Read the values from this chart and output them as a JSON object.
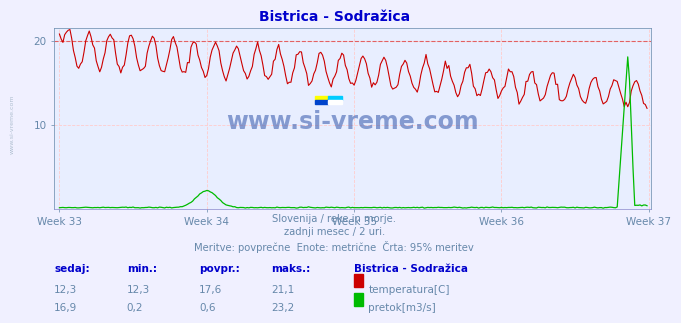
{
  "title": "Bistrica - Sodražica",
  "title_color": "#0000cc",
  "bg_color": "#f0f0ff",
  "plot_bg_color": "#e8eeff",
  "grid_color": "#ffcccc",
  "xlabel_weeks": [
    "Week 33",
    "Week 34",
    "Week 35",
    "Week 36",
    "Week 37"
  ],
  "week_x_positions": [
    0,
    84,
    168,
    252,
    336
  ],
  "ylim_temp": [
    0,
    21.5
  ],
  "yticks_temp": [
    10,
    20
  ],
  "watermark_text": "www.si-vreme.com",
  "sub_text1": "Slovenija / reke in morje.",
  "sub_text2": "zadnji mesec / 2 uri.",
  "sub_text3": "Meritve: povprečne  Enote: metrične  Črta: 95% meritev",
  "sub_text_color": "#6688aa",
  "footer_color": "#0000cc",
  "temp_color": "#cc0000",
  "flow_color": "#00bb00",
  "dashed_line_color": "#dd4444",
  "axis_label_color": "#6688aa",
  "row_headers": [
    "sedaj:",
    "min.:",
    "povpr.:",
    "maks.:"
  ],
  "legend_title": "Bistrica - Sodražica",
  "temp_row": [
    "12,3",
    "12,3",
    "17,6",
    "21,1"
  ],
  "flow_row": [
    "16,9",
    "0,2",
    "0,6",
    "23,2"
  ],
  "temp_label": "temperatura[C]",
  "flow_label": "pretok[m3/s]",
  "side_watermark": "www.si-vreme.com"
}
